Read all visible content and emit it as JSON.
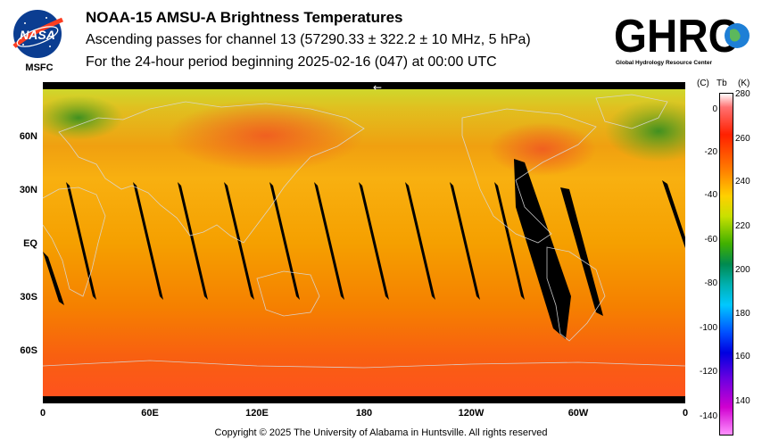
{
  "header": {
    "title": "NOAA-15 AMSU-A Brightness Temperatures",
    "subtitle": "Ascending passes for channel 13 (57290.33 ± 322.2 ± 10 MHz, 5 hPa)",
    "period": "For the 24-hour period beginning 2025-02-16 (047) at 00:00 UTC"
  },
  "logos": {
    "nasa_text": "NASA",
    "nasa_sub": "MSFC",
    "ghrc_text": "GHRC",
    "ghrc_sub": "Global Hydrology Resource Center"
  },
  "map": {
    "lat_labels": [
      "60N",
      "30N",
      "EQ",
      "30S",
      "60S"
    ],
    "lon_labels": [
      "0",
      "60E",
      "120E",
      "180",
      "120W",
      "60W",
      "0"
    ],
    "arrow": "←"
  },
  "colorbar": {
    "left_header": "(C)",
    "mid_header": "Tb",
    "right_header": "(K)",
    "celsius_ticks": [
      "0",
      "-20",
      "-40",
      "-60",
      "-80",
      "-100",
      "-120",
      "-140"
    ],
    "kelvin_ticks": [
      "280",
      "260",
      "240",
      "220",
      "200",
      "180",
      "160",
      "140"
    ]
  },
  "footer": {
    "copyright": "Copyright © 2025 The University of Alabama in Huntsville.  All rights reserved"
  }
}
